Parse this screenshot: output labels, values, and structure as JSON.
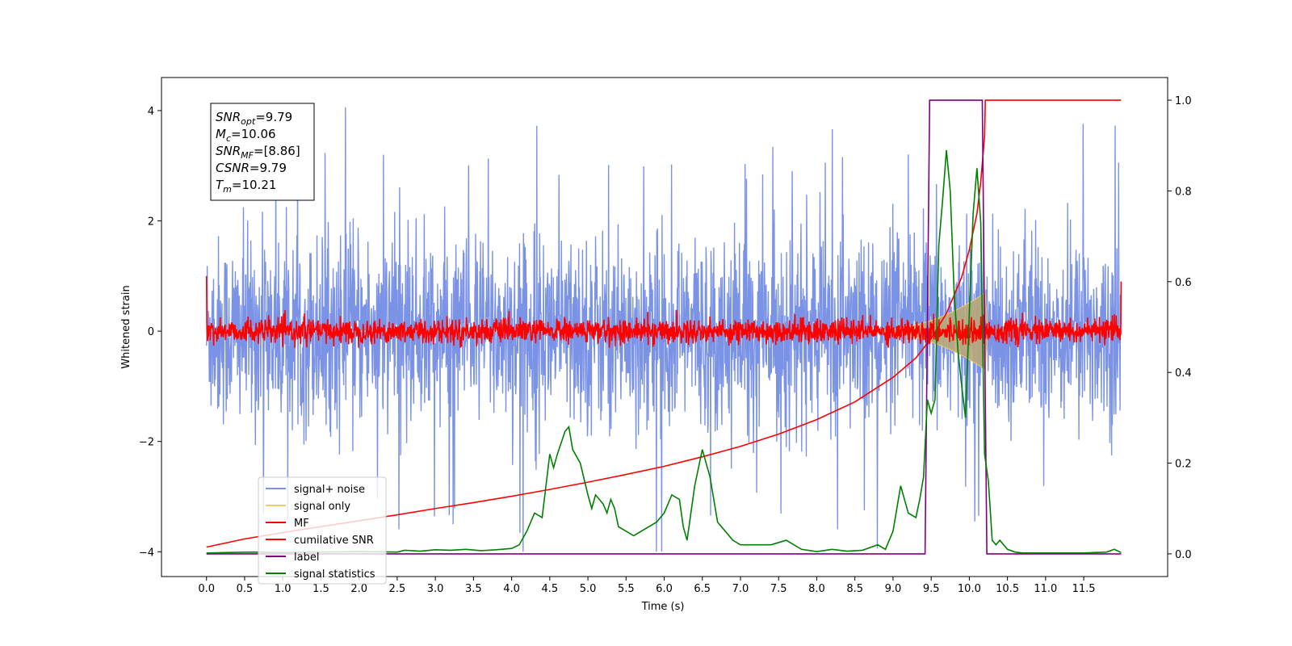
{
  "chart_data": {
    "type": "line",
    "title": "",
    "xlabel": "Time (s)",
    "ylabel": "Whitened strain",
    "y2label": "",
    "xlim": [
      -0.59,
      12.6
    ],
    "ylim": [
      -4.45,
      4.6
    ],
    "y2lim": [
      -0.05,
      1.05
    ],
    "x_ticks": [
      "0.0",
      "0.5",
      "1.0",
      "1.5",
      "2.0",
      "2.5",
      "3.0",
      "3.5",
      "4.0",
      "4.5",
      "5.0",
      "5.5",
      "6.0",
      "6.5",
      "7.0",
      "7.5",
      "8.0",
      "8.5",
      "9.0",
      "9.5",
      "10.0",
      "10.5",
      "11.0",
      "11.5"
    ],
    "y_ticks": [
      "−4",
      "−2",
      "0",
      "2",
      "4"
    ],
    "y2_ticks": [
      "0.0",
      "0.2",
      "0.4",
      "0.6",
      "0.8",
      "1.0"
    ],
    "grid": false,
    "legend_position": "lower-left",
    "annotation": {
      "lines": [
        {
          "base": "SNR",
          "sub": "opt",
          "value": "=9.79"
        },
        {
          "base": "M",
          "sub": "c",
          "value": "=10.06"
        },
        {
          "base": "SNR",
          "sub": "MF",
          "value": "=[8.86]"
        },
        {
          "base": "CSNR",
          "sub": "",
          "value": "=9.79"
        },
        {
          "base": "T",
          "sub": "m",
          "value": "=10.21"
        }
      ]
    },
    "series": [
      {
        "name": "signal+ noise",
        "color": "#7b93e6",
        "axis": "left",
        "style": "dense-noise",
        "envelope_upper": 2.4,
        "envelope_lower": -2.5,
        "max_spike": 4.15,
        "min_spike": -4.0,
        "x_range": [
          0.0,
          11.99
        ]
      },
      {
        "name": "signal only",
        "color": "#f5c96a",
        "axis": "left",
        "style": "chirp",
        "peak_time": 10.21,
        "peak_amplitude": 0.7,
        "x_range": [
          0.0,
          11.99
        ]
      },
      {
        "name": "MF",
        "color": "#ff0000",
        "axis": "left",
        "style": "dense-noise",
        "envelope_upper": 0.18,
        "envelope_lower": -0.18,
        "edge_values": [
          1.0,
          0.9
        ],
        "x_range": [
          0.0,
          11.99
        ]
      },
      {
        "name": "cumilative SNR",
        "color": "#ff0000",
        "axis": "right",
        "x": [
          0.0,
          0.5,
          1.0,
          1.5,
          2.0,
          2.5,
          3.0,
          3.5,
          4.0,
          4.5,
          5.0,
          5.5,
          6.0,
          6.5,
          7.0,
          7.5,
          8.0,
          8.5,
          9.0,
          9.3,
          9.5,
          9.7,
          9.9,
          10.0,
          10.1,
          10.15,
          10.2,
          10.21,
          10.5,
          11.0,
          11.5,
          11.99
        ],
        "y": [
          0.015,
          0.033,
          0.047,
          0.06,
          0.073,
          0.086,
          0.1,
          0.113,
          0.127,
          0.142,
          0.158,
          0.175,
          0.193,
          0.214,
          0.237,
          0.264,
          0.296,
          0.335,
          0.389,
          0.432,
          0.475,
          0.53,
          0.61,
          0.67,
          0.75,
          0.82,
          0.92,
          1.0,
          1.0,
          1.0,
          1.0,
          1.0
        ]
      },
      {
        "name": "label",
        "color": "#800080",
        "axis": "right",
        "x": [
          0.0,
          9.42,
          9.48,
          10.17,
          10.23,
          11.99
        ],
        "y": [
          0.0,
          0.0,
          1.0,
          1.0,
          0.0,
          0.0
        ]
      },
      {
        "name": "signal statistics",
        "color": "#008000",
        "axis": "right",
        "x": [
          0.0,
          0.3,
          0.6,
          1.0,
          1.5,
          2.0,
          2.5,
          2.6,
          2.8,
          3.0,
          3.2,
          3.4,
          3.6,
          3.8,
          4.0,
          4.1,
          4.2,
          4.3,
          4.4,
          4.5,
          4.55,
          4.6,
          4.7,
          4.75,
          4.8,
          4.9,
          5.0,
          5.05,
          5.1,
          5.2,
          5.25,
          5.3,
          5.35,
          5.4,
          5.5,
          5.6,
          5.7,
          5.8,
          5.9,
          6.0,
          6.1,
          6.2,
          6.25,
          6.3,
          6.4,
          6.5,
          6.6,
          6.7,
          6.8,
          6.9,
          7.0,
          7.2,
          7.4,
          7.6,
          7.8,
          8.0,
          8.2,
          8.4,
          8.6,
          8.8,
          8.9,
          9.0,
          9.1,
          9.2,
          9.3,
          9.35,
          9.4,
          9.45,
          9.5,
          9.55,
          9.6,
          9.65,
          9.7,
          9.75,
          9.8,
          9.85,
          9.9,
          9.95,
          10.0,
          10.05,
          10.1,
          10.15,
          10.2,
          10.25,
          10.3,
          10.35,
          10.4,
          10.5,
          10.6,
          10.7,
          11.0,
          11.5,
          11.8,
          11.9,
          11.99
        ],
        "y": [
          0.002,
          0.003,
          0.004,
          0.003,
          0.004,
          0.005,
          0.004,
          0.008,
          0.006,
          0.009,
          0.008,
          0.01,
          0.007,
          0.009,
          0.012,
          0.02,
          0.05,
          0.09,
          0.08,
          0.22,
          0.19,
          0.22,
          0.27,
          0.28,
          0.23,
          0.2,
          0.13,
          0.1,
          0.13,
          0.11,
          0.09,
          0.12,
          0.1,
          0.06,
          0.05,
          0.04,
          0.05,
          0.06,
          0.07,
          0.09,
          0.13,
          0.12,
          0.06,
          0.03,
          0.15,
          0.23,
          0.17,
          0.07,
          0.05,
          0.03,
          0.02,
          0.02,
          0.02,
          0.03,
          0.01,
          0.005,
          0.01,
          0.006,
          0.008,
          0.02,
          0.01,
          0.05,
          0.15,
          0.09,
          0.08,
          0.12,
          0.17,
          0.34,
          0.31,
          0.34,
          0.68,
          0.78,
          0.89,
          0.8,
          0.58,
          0.45,
          0.37,
          0.3,
          0.53,
          0.75,
          0.85,
          0.73,
          0.22,
          0.16,
          0.03,
          0.02,
          0.03,
          0.01,
          0.004,
          0.002,
          0.002,
          0.002,
          0.004,
          0.01,
          0.003
        ]
      }
    ]
  }
}
